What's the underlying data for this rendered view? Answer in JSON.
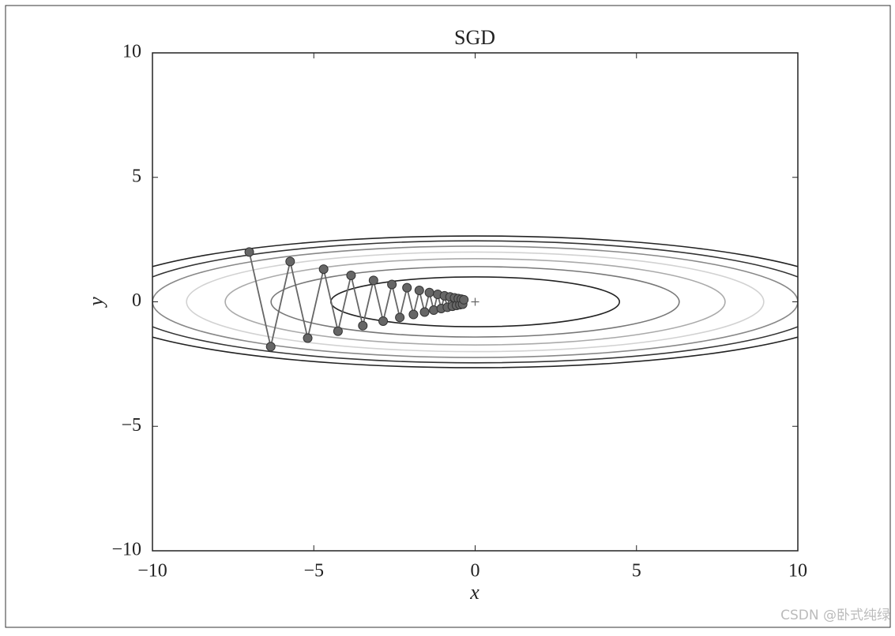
{
  "chart_data": {
    "type": "contour-path",
    "title": "SGD",
    "xlabel": "x",
    "ylabel": "y",
    "xlim": [
      -10,
      10
    ],
    "ylim": [
      -10,
      10
    ],
    "xticks": [
      {
        "value": -10,
        "label": "−10"
      },
      {
        "value": -5,
        "label": "−5"
      },
      0,
      5,
      10
    ],
    "yticks": [
      {
        "value": -10,
        "label": "−10"
      },
      {
        "value": -5,
        "label": "−5"
      },
      0,
      5,
      10
    ],
    "contours": [
      {
        "level": 1,
        "color": "#222222"
      },
      {
        "level": 2,
        "color": "#777777"
      },
      {
        "level": 3,
        "color": "#aaaaaa"
      },
      {
        "level": 4,
        "color": "#d2d2d2"
      },
      {
        "level": 5,
        "color": "#888888"
      },
      {
        "level": 6,
        "color": "#333333"
      },
      {
        "level": 7,
        "color": "#222222"
      }
    ],
    "minimum": {
      "x": 0,
      "y": 0,
      "color": "#666666"
    },
    "series": [
      {
        "color": "#666666",
        "x": [
          -7,
          -6.335,
          -5.733,
          -5.189,
          -4.696,
          -4.25,
          -3.846,
          -3.481,
          -3.15,
          -2.851,
          -2.58,
          -2.335,
          -2.113,
          -1.912,
          -1.731,
          -1.566,
          -1.418,
          -1.283,
          -1.161,
          -1.051,
          -0.951,
          -0.861,
          -0.779,
          -0.705,
          -0.638,
          -0.577,
          -0.522,
          -0.473,
          -0.428,
          -0.387,
          -0.35
        ],
        "values": [
          2,
          -1.8,
          1.62,
          -1.458,
          1.312,
          -1.181,
          1.063,
          -0.957,
          0.861,
          -0.775,
          0.697,
          -0.628,
          0.565,
          -0.508,
          0.458,
          -0.412,
          0.371,
          -0.334,
          0.3,
          -0.27,
          0.243,
          -0.219,
          0.197,
          -0.177,
          0.16,
          -0.144,
          0.129,
          -0.116,
          0.105,
          -0.094,
          0.085
        ]
      }
    ],
    "watermark": "CSDN @卧式纯绿"
  }
}
